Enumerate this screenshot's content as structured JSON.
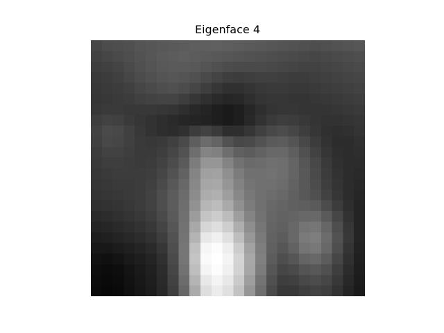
{
  "chart_data": {
    "type": "heatmap",
    "title": "Eigenface 4",
    "xlabel": "",
    "ylabel": "",
    "axis": "off",
    "grid": false,
    "colormap": "gray",
    "rows": 24,
    "cols": 25,
    "values": [
      [
        70,
        76,
        78,
        80,
        84,
        86,
        88,
        90,
        92,
        94,
        95,
        96,
        94,
        92,
        90,
        88,
        86,
        84,
        82,
        80,
        78,
        80,
        82,
        84,
        86
      ],
      [
        66,
        70,
        74,
        78,
        82,
        86,
        90,
        92,
        94,
        92,
        90,
        88,
        86,
        84,
        82,
        80,
        78,
        76,
        74,
        72,
        70,
        72,
        74,
        76,
        78
      ],
      [
        62,
        64,
        68,
        74,
        80,
        84,
        88,
        90,
        90,
        88,
        84,
        80,
        76,
        74,
        74,
        74,
        72,
        70,
        68,
        66,
        66,
        68,
        70,
        72,
        74
      ],
      [
        58,
        60,
        64,
        70,
        76,
        80,
        84,
        86,
        84,
        80,
        74,
        68,
        62,
        60,
        62,
        64,
        64,
        62,
        60,
        60,
        62,
        64,
        66,
        68,
        70
      ],
      [
        56,
        58,
        60,
        64,
        70,
        74,
        78,
        80,
        76,
        70,
        62,
        54,
        48,
        48,
        52,
        56,
        58,
        58,
        56,
        56,
        58,
        60,
        62,
        64,
        66
      ],
      [
        54,
        56,
        58,
        60,
        64,
        66,
        68,
        68,
        62,
        54,
        48,
        42,
        38,
        40,
        46,
        52,
        54,
        54,
        52,
        52,
        54,
        56,
        58,
        60,
        62
      ],
      [
        56,
        58,
        58,
        56,
        56,
        56,
        54,
        52,
        46,
        40,
        36,
        30,
        26,
        30,
        38,
        46,
        52,
        54,
        54,
        52,
        52,
        52,
        54,
        56,
        58
      ],
      [
        62,
        66,
        64,
        58,
        54,
        50,
        46,
        42,
        38,
        36,
        34,
        30,
        26,
        30,
        40,
        50,
        58,
        62,
        60,
        56,
        52,
        50,
        50,
        52,
        54
      ],
      [
        66,
        74,
        72,
        64,
        56,
        50,
        46,
        44,
        48,
        60,
        66,
        58,
        46,
        46,
        54,
        64,
        72,
        76,
        70,
        62,
        54,
        48,
        46,
        48,
        52
      ],
      [
        64,
        72,
        70,
        64,
        58,
        56,
        58,
        64,
        74,
        94,
        108,
        100,
        82,
        72,
        74,
        82,
        90,
        92,
        84,
        72,
        60,
        50,
        44,
        44,
        48
      ],
      [
        60,
        66,
        66,
        62,
        58,
        58,
        62,
        70,
        82,
        110,
        132,
        128,
        110,
        96,
        92,
        98,
        104,
        104,
        94,
        80,
        66,
        54,
        46,
        44,
        46
      ],
      [
        58,
        62,
        62,
        60,
        58,
        60,
        66,
        76,
        90,
        124,
        150,
        150,
        132,
        114,
        106,
        108,
        112,
        110,
        100,
        86,
        72,
        58,
        48,
        44,
        44
      ],
      [
        56,
        58,
        60,
        60,
        60,
        62,
        70,
        82,
        98,
        132,
        160,
        162,
        144,
        124,
        112,
        112,
        114,
        110,
        100,
        88,
        74,
        60,
        50,
        44,
        42
      ],
      [
        54,
        56,
        58,
        58,
        60,
        64,
        74,
        88,
        104,
        136,
        166,
        168,
        150,
        130,
        116,
        112,
        112,
        108,
        98,
        88,
        76,
        62,
        52,
        44,
        40
      ],
      [
        52,
        54,
        56,
        58,
        60,
        66,
        78,
        92,
        108,
        140,
        172,
        176,
        158,
        136,
        120,
        112,
        108,
        104,
        96,
        88,
        80,
        66,
        54,
        44,
        38
      ],
      [
        48,
        50,
        52,
        56,
        60,
        66,
        78,
        92,
        110,
        146,
        182,
        188,
        170,
        144,
        124,
        112,
        104,
        100,
        96,
        94,
        90,
        76,
        60,
        46,
        36
      ],
      [
        42,
        44,
        48,
        52,
        56,
        62,
        74,
        90,
        112,
        156,
        196,
        204,
        188,
        158,
        132,
        114,
        102,
        98,
        100,
        104,
        104,
        90,
        70,
        50,
        36
      ],
      [
        36,
        38,
        42,
        46,
        50,
        56,
        68,
        86,
        114,
        168,
        214,
        222,
        206,
        174,
        142,
        118,
        100,
        96,
        104,
        116,
        118,
        102,
        78,
        54,
        36
      ],
      [
        30,
        32,
        36,
        40,
        44,
        50,
        62,
        82,
        116,
        180,
        232,
        240,
        224,
        190,
        152,
        122,
        98,
        92,
        104,
        122,
        126,
        108,
        82,
        56,
        36
      ],
      [
        24,
        24,
        28,
        32,
        36,
        42,
        54,
        78,
        118,
        192,
        246,
        252,
        238,
        204,
        162,
        126,
        96,
        86,
        98,
        116,
        120,
        104,
        78,
        52,
        34
      ],
      [
        18,
        16,
        20,
        26,
        30,
        36,
        48,
        74,
        118,
        196,
        250,
        255,
        244,
        212,
        168,
        128,
        92,
        78,
        86,
        100,
        104,
        92,
        70,
        48,
        32
      ],
      [
        14,
        12,
        14,
        20,
        26,
        32,
        44,
        70,
        114,
        190,
        244,
        252,
        240,
        210,
        166,
        124,
        86,
        70,
        74,
        84,
        88,
        80,
        62,
        44,
        30
      ],
      [
        12,
        10,
        12,
        18,
        24,
        30,
        42,
        66,
        108,
        180,
        232,
        244,
        232,
        202,
        158,
        116,
        80,
        62,
        64,
        72,
        76,
        70,
        56,
        40,
        28
      ],
      [
        10,
        8,
        10,
        16,
        22,
        28,
        40,
        62,
        102,
        170,
        222,
        236,
        224,
        194,
        150,
        110,
        74,
        56,
        56,
        62,
        66,
        62,
        50,
        36,
        26
      ]
    ]
  }
}
